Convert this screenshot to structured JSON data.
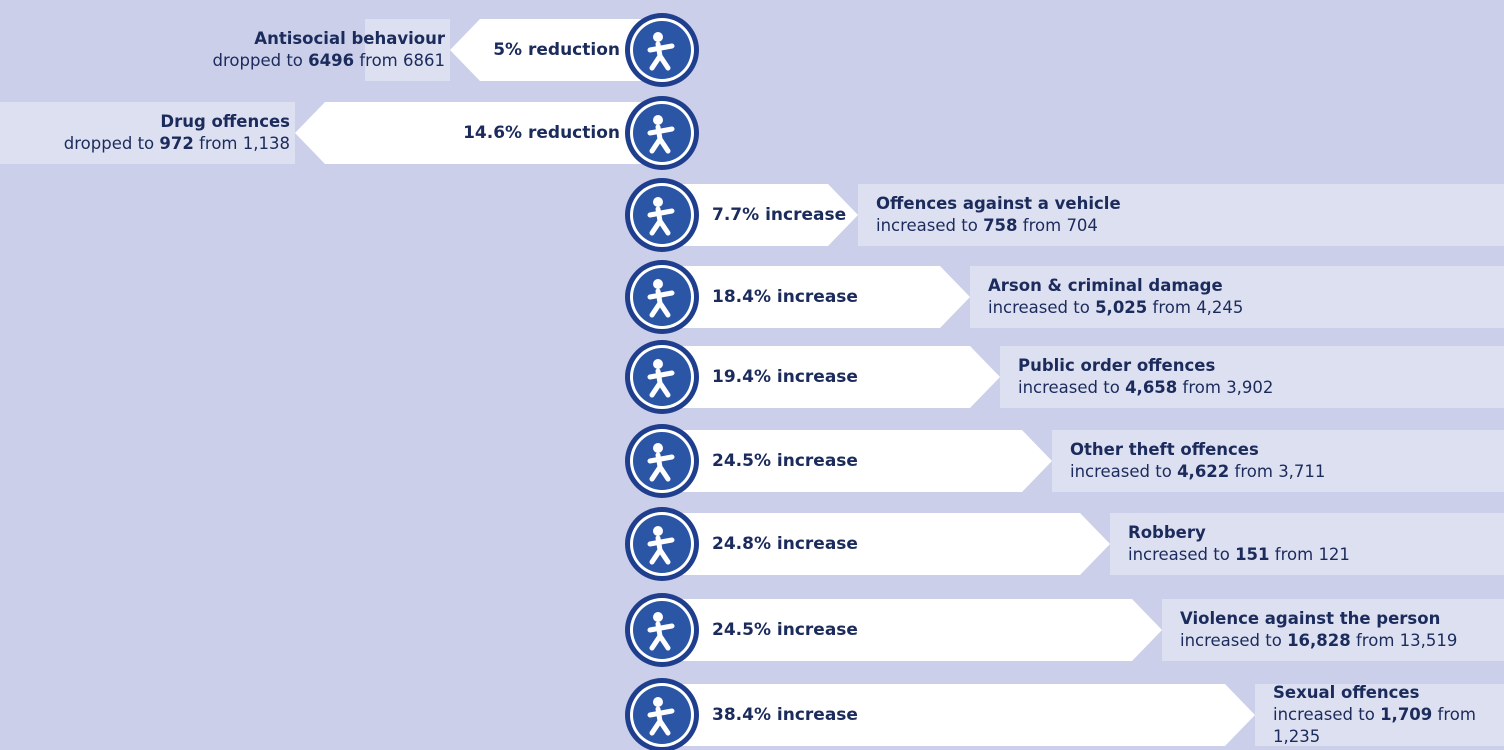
{
  "items": [
    {
      "name": "Antisocial behaviour",
      "change": "5% reduction",
      "trend": "dropped to",
      "current": "6496",
      "from": "from",
      "previous": "6861"
    },
    {
      "name": "Drug offences",
      "change": "14.6% reduction",
      "trend": "dropped to",
      "current": "972",
      "from": "from",
      "previous": "1,138"
    },
    {
      "name": "Offences against a vehicle",
      "change": "7.7% increase",
      "trend": "increased to",
      "current": "758",
      "from": "from",
      "previous": "704"
    },
    {
      "name": "Arson & criminal damage",
      "change": "18.4% increase",
      "trend": "increased to",
      "current": "5,025",
      "from": "from",
      "previous": "4,245"
    },
    {
      "name": "Public order offences",
      "change": "19.4% increase",
      "trend": "increased to",
      "current": "4,658",
      "from": "from",
      "previous": "3,902"
    },
    {
      "name": "Other theft offences",
      "change": "24.5% increase",
      "trend": "increased to",
      "current": "4,622",
      "from": "from",
      "previous": "3,711"
    },
    {
      "name": "Robbery",
      "change": "24.8% increase",
      "trend": "increased to",
      "current": "151",
      "from": "from",
      "previous": "121"
    },
    {
      "name": "Violence against the person",
      "change": "24.5% increase",
      "trend": "increased to",
      "current": "16,828",
      "from": "from",
      "previous": "13,519"
    },
    {
      "name": "Sexual offences",
      "change": "38.4% increase",
      "trend": "increased to",
      "current": "1,709",
      "from": "from",
      "previous": "1,235"
    }
  ]
}
